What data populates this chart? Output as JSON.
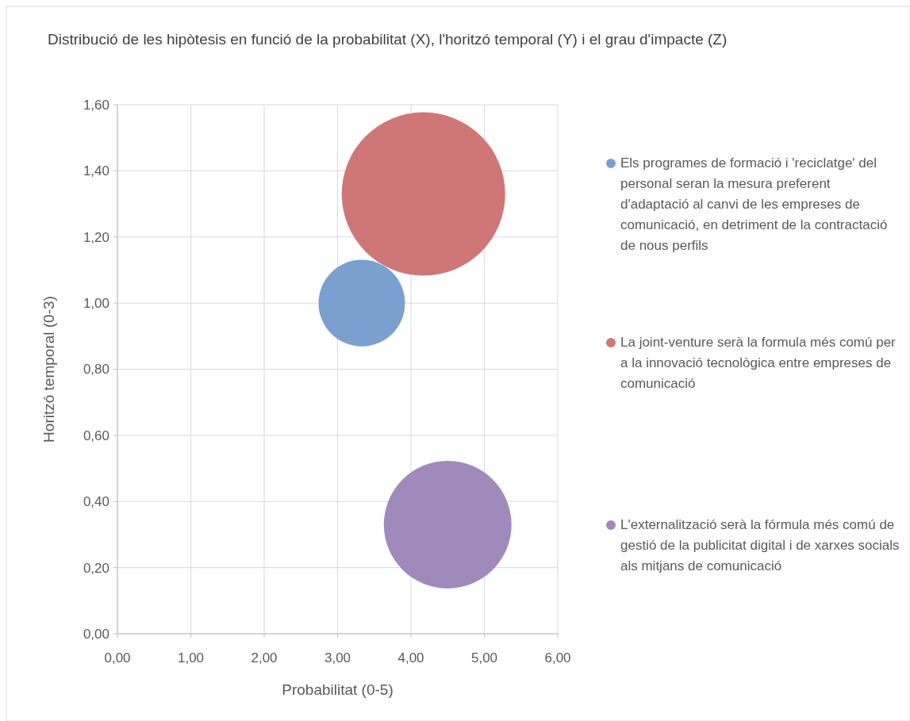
{
  "chart_data": {
    "type": "bubble",
    "title": "Distribució de les hipòtesis en funció de la probabilitat (X), l'horitzó temporal (Y) i el grau d'impacte (Z)",
    "xlabel": "Probabilitat (0-5)",
    "ylabel": "Horitzó temporal (0-3)",
    "series": [
      {
        "name": "Els programes de formació i 'reciclatge' del personal seran la mesura preferent d'adaptació al canvi de les empreses de comunicació, en detriment de la contractació de nous perfils",
        "color": "#7ba0cf",
        "x": [
          3.33
        ],
        "values": [
          1.0
        ],
        "sizes": [
          0.28
        ]
      },
      {
        "name": "La joint-venture serà la formula més comú per a la innovació tecnològica entre empreses de comunicació",
        "color": "#cf7776",
        "x": [
          4.17
        ],
        "values": [
          1.33
        ],
        "sizes": [
          1
        ]
      },
      {
        "name": "L'externalització serà la fórmula més comú de gestió de la publicitat digital i de xarxes socials als mitjans de comunicació",
        "color": "#a08abb",
        "x": [
          4.5
        ],
        "values": [
          0.33
        ],
        "sizes": [
          0.61
        ]
      }
    ],
    "xlim": [
      0,
      6
    ],
    "xticks": [
      {
        "value": 0,
        "label": "0,00"
      },
      {
        "value": 1,
        "label": "1,00"
      },
      {
        "value": 2,
        "label": "2,00"
      },
      {
        "value": 3,
        "label": "3,00"
      },
      {
        "value": 4,
        "label": "4,00"
      },
      {
        "value": 5,
        "label": "5,00"
      },
      {
        "value": 6,
        "label": "6,00"
      }
    ],
    "ylim": [
      0,
      1.6
    ],
    "yticks": [
      {
        "value": 0,
        "label": "0,00"
      },
      {
        "value": 0.2,
        "label": "0,20"
      },
      {
        "value": 0.4,
        "label": "0,40"
      },
      {
        "value": 0.6,
        "label": "0,60"
      },
      {
        "value": 0.8,
        "label": "0,80"
      },
      {
        "value": 1,
        "label": "1,00"
      },
      {
        "value": 1.2,
        "label": "1,20"
      },
      {
        "value": 1.4,
        "label": "1,40"
      },
      {
        "value": 1.6,
        "label": "1,60"
      }
    ],
    "grid": true,
    "legend": "right"
  }
}
